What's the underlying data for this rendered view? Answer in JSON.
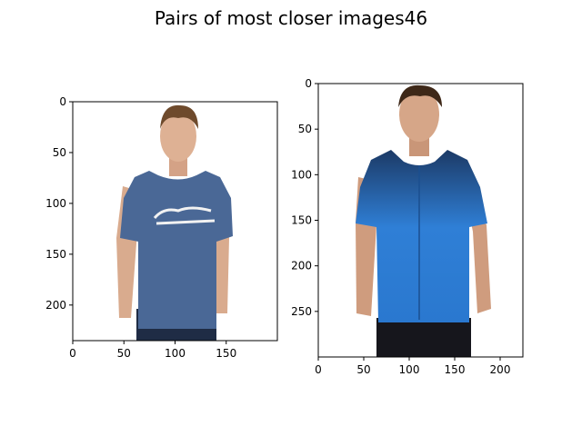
{
  "figure": {
    "title": "Pairs of most closer images46"
  },
  "panels": [
    {
      "xlim": [
        0,
        200
      ],
      "ylim": [
        235,
        0
      ],
      "x_ticks": [
        0,
        50,
        100,
        150
      ],
      "y_ticks": [
        0,
        50,
        100,
        150,
        200
      ],
      "image": {
        "subject": "man",
        "garment": "t-shirt",
        "garment_color": "#4a6896",
        "print_text": "Fender"
      }
    },
    {
      "xlim": [
        0,
        225
      ],
      "ylim": [
        300,
        0
      ],
      "x_ticks": [
        0,
        50,
        100,
        150,
        200
      ],
      "y_ticks": [
        0,
        50,
        100,
        150,
        200,
        250
      ],
      "image": {
        "subject": "man",
        "garment": "shirt",
        "garment_color": "#2f7fd6",
        "garment_top_color": "#1c3a66"
      }
    }
  ]
}
